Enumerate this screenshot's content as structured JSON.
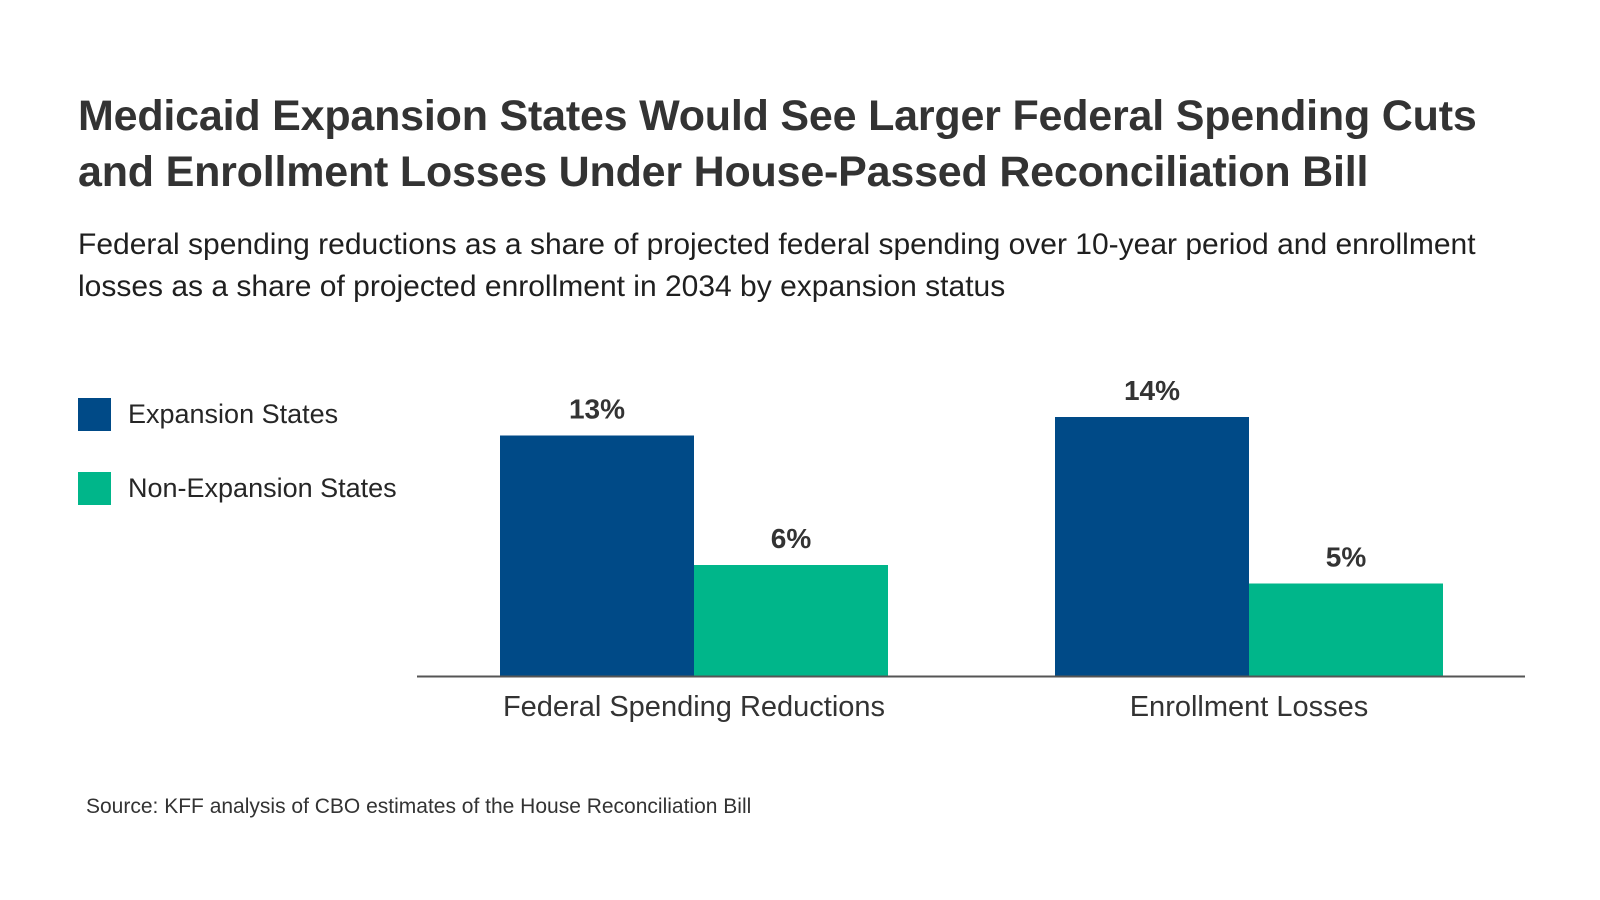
{
  "title": "Medicaid Expansion States Would See Larger Federal Spending Cuts and Enrollment Losses Under House-Passed Reconciliation Bill",
  "subtitle": "Federal spending reductions as a share of projected federal spending over 10-year period and enrollment losses as a share of projected enrollment in 2034 by expansion status",
  "source": "Source: KFF analysis of CBO estimates of the House Reconciliation Bill",
  "colors": {
    "expansion": "#004a87",
    "non_expansion": "#00b68a",
    "text": "#333333",
    "axis": "#555555"
  },
  "legend": [
    {
      "label": "Expansion States",
      "color": "#004a87"
    },
    {
      "label": "Non-Expansion States",
      "color": "#00b68a"
    }
  ],
  "chart_data": {
    "type": "bar",
    "title": "Medicaid Expansion States Would See Larger Federal Spending Cuts and Enrollment Losses Under House-Passed Reconciliation Bill",
    "xlabel": "",
    "ylabel": "",
    "categories": [
      "Federal Spending Reductions",
      "Enrollment Losses"
    ],
    "series": [
      {
        "name": "Expansion States",
        "values": [
          13,
          14
        ],
        "labels": [
          "13%",
          "14%"
        ],
        "color": "#004a87"
      },
      {
        "name": "Non-Expansion States",
        "values": [
          6,
          5
        ],
        "labels": [
          "6%",
          "5%"
        ],
        "color": "#00b68a"
      }
    ],
    "ylim": [
      0,
      14
    ],
    "grid": false,
    "legend_position": "left"
  }
}
